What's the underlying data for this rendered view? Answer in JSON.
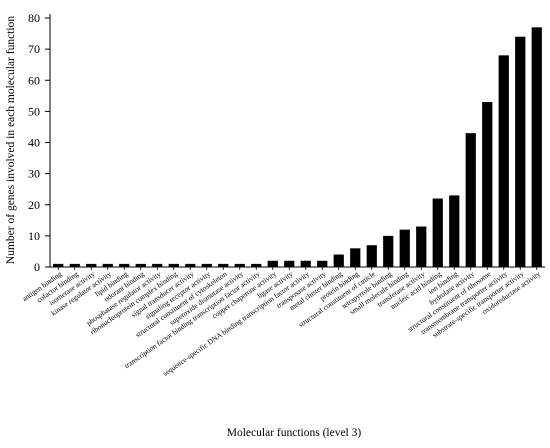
{
  "chart_data": {
    "type": "bar",
    "title": "",
    "xlabel": "Molecular functions (level 3)",
    "ylabel": "Number of genes involved in each molecular function",
    "ylim": [
      0,
      80
    ],
    "yticks": [
      0,
      10,
      20,
      30,
      40,
      50,
      60,
      70,
      80
    ],
    "grid": false,
    "bar_color": "#000000",
    "categories": [
      "antigen binding",
      "cofactor binding",
      "isomerase activity",
      "kinase regulator activity",
      "lipid binding",
      "odorant binding",
      "phosphatase regulator activity",
      "ribonucleoprotein complex binding",
      "signal transducer activity",
      "signaling receptor activity",
      "structural constituent of cytoskeleton",
      "superoxide dismutase activity",
      "transcription factor binding transcription factor activity",
      "copper chaperone activity",
      "ligase activity",
      "sequence-specific DNA binding transcription factor activity",
      "transposase activity",
      "metal cluster binding",
      "protein binding",
      "structural constituent of cuticle",
      "tetrapyrrole binding",
      "small molecule binding",
      "transferase activity",
      "nucleic acid binding",
      "ion binding",
      "hydrolase activity",
      "structural constituent of ribosome",
      "transmembrane transporter activity",
      "substrate-specific transporter activity",
      "oxidoreductase activity"
    ],
    "values": [
      1,
      1,
      1,
      1,
      1,
      1,
      1,
      1,
      1,
      1,
      1,
      1,
      1,
      2,
      2,
      2,
      2,
      4,
      6,
      7,
      10,
      12,
      13,
      22,
      23,
      43,
      53,
      68,
      74,
      77
    ]
  }
}
